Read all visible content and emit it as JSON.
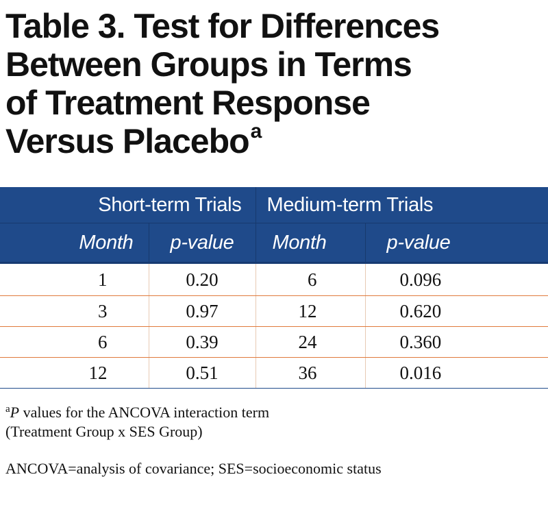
{
  "title": {
    "lines": [
      "Table 3. Test for Differences",
      "Between Groups in Terms",
      "of Treatment Response",
      "Versus Placebo"
    ],
    "superscript": "a"
  },
  "table": {
    "groups": [
      "Short-term Trials",
      "Medium-term Trials"
    ],
    "columns": [
      "Month",
      "p-value",
      "Month",
      "p-value"
    ],
    "rows": [
      [
        "1",
        "0.20",
        "6",
        "0.096"
      ],
      [
        "3",
        "0.97",
        "12",
        "0.620"
      ],
      [
        "6",
        "0.39",
        "24",
        "0.360"
      ],
      [
        "12",
        "0.51",
        "36",
        "0.016"
      ]
    ],
    "header_color": "#1f4a8a",
    "row_divider_color": "#e07a3c"
  },
  "footnotes": {
    "note_a": {
      "marker": "a",
      "variable": "P",
      "text_line1": " values for the ANCOVA interaction term",
      "text_line2": "(Treatment Group x SES Group)"
    },
    "abbreviations": "ANCOVA=analysis of covariance; SES=socioeconomic status"
  }
}
